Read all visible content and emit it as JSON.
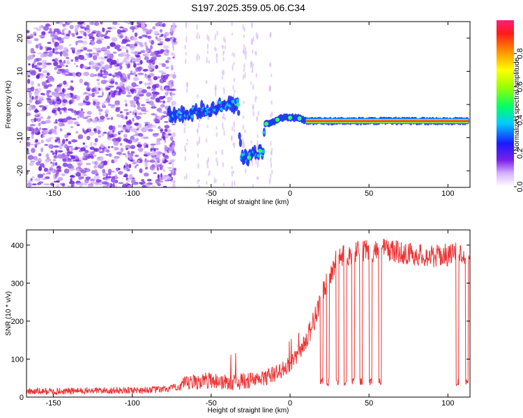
{
  "title": "S197.2025.359.05.06.C34",
  "spectrogram": {
    "type": "heatmap",
    "xlabel": "Height of straight line (km)",
    "ylabel": "Frequency (Hz)",
    "xlim": [
      -167,
      114
    ],
    "ylim": [
      -25,
      25
    ],
    "x_ticks": [
      -150,
      -100,
      -50,
      0,
      50,
      100
    ],
    "y_ticks": [
      -20,
      -10,
      0,
      10,
      20
    ],
    "colorbar": {
      "label": "Normalized spectral amplitude",
      "range": [
        0,
        1
      ],
      "ticks": [
        "0.0",
        "0.2",
        "0.4",
        "0.6",
        "0.8"
      ],
      "tick_values": [
        0,
        0.2,
        0.4,
        0.6,
        0.8
      ]
    }
  },
  "snr_plot": {
    "type": "line",
    "xlabel": "Height of straight line (km)",
    "ylabel": "SNR (10 * v/v)",
    "xlim": [
      -167,
      114
    ],
    "ylim": [
      0,
      440
    ],
    "x_ticks": [
      -150,
      -100,
      -50,
      0,
      50,
      100
    ],
    "y_ticks": [
      0,
      100,
      200,
      300,
      400
    ],
    "color": "#ee3333"
  },
  "chart_data": [
    {
      "type": "heatmap",
      "title": "S197.2025.359.05.06.C34",
      "xlabel": "Height of straight line (km)",
      "ylabel": "Frequency (Hz)",
      "xlim": [
        -167,
        114
      ],
      "ylim": [
        -25,
        25
      ],
      "colorbar_label": "Normalized spectral amplitude",
      "colorbar_range": [
        0,
        1
      ],
      "ridge": [
        {
          "x": -77,
          "freq": -3
        },
        {
          "x": -70,
          "freq": -3
        },
        {
          "x": -60,
          "freq": -2
        },
        {
          "x": -50,
          "freq": -1
        },
        {
          "x": -40,
          "freq": 0
        },
        {
          "x": -33,
          "freq": 0
        },
        {
          "x": -31,
          "freq": -16
        },
        {
          "x": -26,
          "freq": -16
        },
        {
          "x": -22,
          "freq": -14
        },
        {
          "x": -17,
          "freq": -14
        },
        {
          "x": -16,
          "freq": -6
        },
        {
          "x": -10,
          "freq": -5
        },
        {
          "x": -5,
          "freq": -4
        },
        {
          "x": 5,
          "freq": -4
        },
        {
          "x": 10,
          "freq": -5
        },
        {
          "x": 113,
          "freq": -5
        }
      ],
      "noise_region": [
        -167,
        -77
      ]
    },
    {
      "type": "line",
      "xlabel": "Height of straight line (km)",
      "ylabel": "SNR (10 * v/v)",
      "xlim": [
        -167,
        114
      ],
      "ylim": [
        0,
        440
      ],
      "x": [
        -167,
        -150,
        -125,
        -100,
        -80,
        -70,
        -60,
        -50,
        -40,
        -30,
        -20,
        -10,
        0,
        5,
        10,
        15,
        20,
        25,
        30,
        40,
        50,
        60,
        70,
        80,
        90,
        100,
        110,
        113
      ],
      "values": [
        15,
        15,
        17,
        18,
        20,
        28,
        40,
        45,
        38,
        42,
        45,
        60,
        85,
        110,
        150,
        200,
        265,
        320,
        365,
        380,
        385,
        390,
        380,
        375,
        370,
        375,
        380,
        380
      ],
      "dropouts": [
        {
          "x": 20,
          "value": 30
        },
        {
          "x": 24,
          "value": 30
        },
        {
          "x": 30,
          "value": 30
        },
        {
          "x": 35,
          "value": 30
        },
        {
          "x": 40,
          "value": 30
        },
        {
          "x": 45,
          "value": 30
        },
        {
          "x": 51,
          "value": 30
        },
        {
          "x": 57,
          "value": 30
        },
        {
          "x": 106,
          "value": 30
        },
        {
          "x": 112,
          "value": 30
        }
      ]
    }
  ]
}
